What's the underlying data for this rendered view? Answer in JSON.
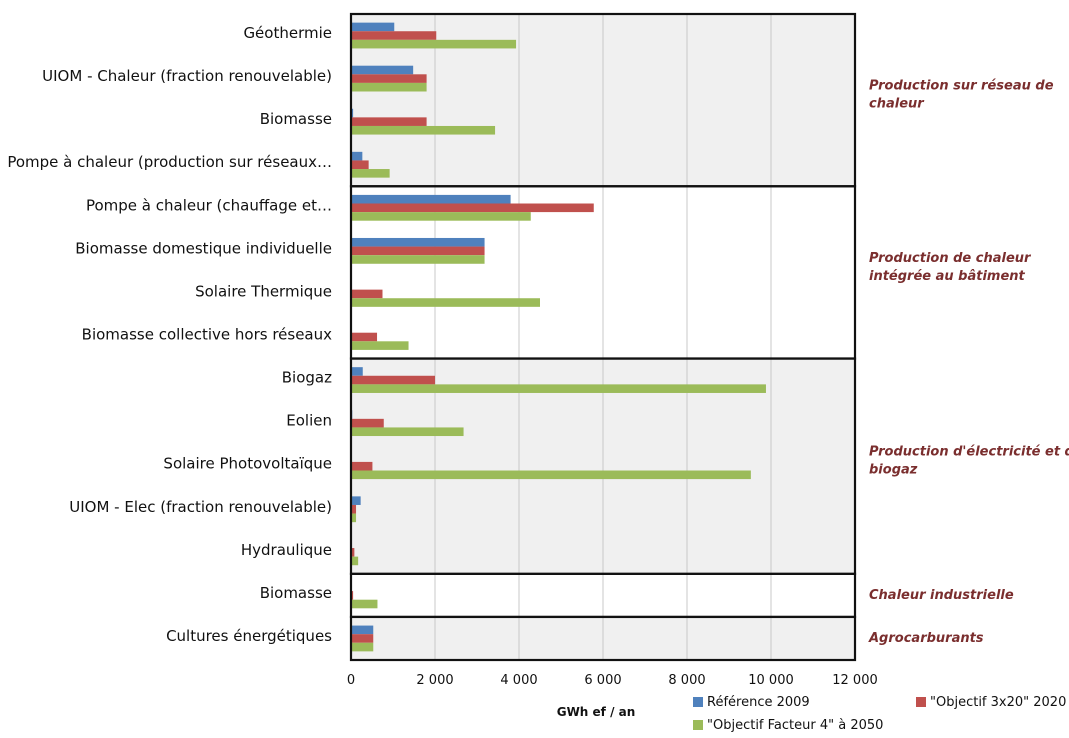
{
  "chart_data": {
    "type": "bar",
    "orientation": "horizontal",
    "xlabel": "GWh ef / an",
    "xlim": [
      0,
      12000
    ],
    "xticks": [
      0,
      2000,
      4000,
      6000,
      8000,
      10000,
      12000
    ],
    "xtick_labels": [
      "0",
      "2 000",
      "4 000",
      "6 000",
      "8 000",
      "10 000",
      "12 000"
    ],
    "grid": "vertical",
    "legend_position": "bottom",
    "categories": [
      "Géothermie",
      "UIOM - Chaleur (fraction renouvelable)",
      "Biomasse",
      "Pompe à chaleur (production sur réseaux…",
      "Pompe à chaleur (chauffage et…",
      "Biomasse domestique individuelle",
      "Solaire Thermique",
      "Biomasse collective hors réseaux",
      "Biogaz",
      "Eolien",
      "Solaire Photovoltaïque",
      "UIOM - Elec (fraction renouvelable)",
      "Hydraulique",
      "Biomasse",
      "Cultures énergétiques"
    ],
    "series": [
      {
        "name": "Référence 2009",
        "color": "#4f81bd",
        "values": [
          1030,
          1480,
          50,
          270,
          3800,
          3180,
          0,
          0,
          280,
          30,
          20,
          230,
          0,
          0,
          530
        ]
      },
      {
        "name": "\"Objectif 3x20\" 2020",
        "color": "#c0504d",
        "values": [
          2030,
          1800,
          1800,
          420,
          5780,
          3180,
          750,
          620,
          2000,
          780,
          510,
          120,
          80,
          50,
          530
        ]
      },
      {
        "name": "\"Objectif Facteur 4\" à 2050",
        "color": "#9bbb59",
        "values": [
          3930,
          1800,
          3430,
          920,
          4280,
          3180,
          4500,
          1370,
          9880,
          2680,
          9520,
          120,
          170,
          630,
          530
        ]
      }
    ],
    "groups": [
      {
        "label_lines": [
          "Production sur réseau de",
          "chaleur"
        ],
        "categories": [
          0,
          1,
          2,
          3
        ],
        "shaded": true
      },
      {
        "label_lines": [
          "Production de chaleur",
          "intégrée au bâtiment"
        ],
        "categories": [
          4,
          5,
          6,
          7
        ],
        "shaded": false
      },
      {
        "label_lines": [
          "Production d'électricité et de",
          "biogaz"
        ],
        "categories": [
          8,
          9,
          10,
          11,
          12
        ],
        "shaded": true
      },
      {
        "label_lines": [
          "Chaleur industrielle"
        ],
        "categories": [
          13
        ],
        "shaded": false
      },
      {
        "label_lines": [
          "Agrocarburants"
        ],
        "categories": [
          14
        ],
        "shaded": true
      }
    ]
  }
}
